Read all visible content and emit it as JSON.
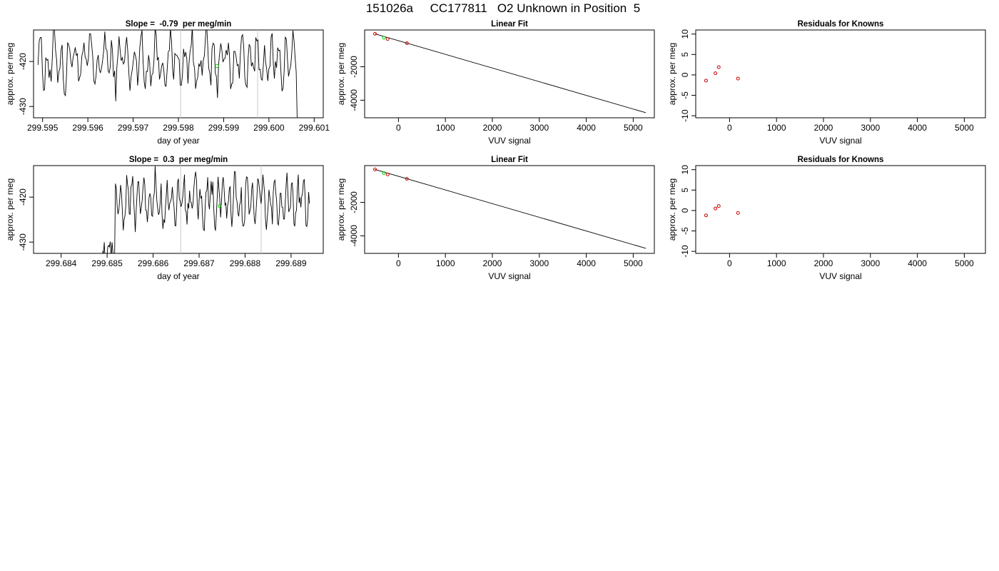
{
  "title": "151026a     CC177811   O2 Unknown in Position  5",
  "chart_data": [
    {
      "type": "line",
      "title": "Slope =  -0.79  per meg/min",
      "xlabel": "day of year",
      "ylabel": "approx. per meg",
      "xlim": [
        299.5948,
        299.6012
      ],
      "ylim": [
        -432.5,
        -413
      ],
      "xticks": [
        299.595,
        299.596,
        299.597,
        299.598,
        299.599,
        299.6,
        299.601
      ],
      "xtick_labels": [
        "299.595",
        "299.596",
        "299.597",
        "299.598",
        "299.599",
        "299.600",
        "299.601"
      ],
      "yticks": [
        -420,
        -430
      ],
      "ytick_labels": [
        "-420",
        "-430"
      ],
      "trace_x_range": [
        299.5949,
        299.6007
      ],
      "trace_center": -420,
      "trace_amplitude": 7.5,
      "trace_end_drop": -432.5,
      "vlines": [
        299.59805,
        299.59975
      ],
      "highlight_point": {
        "x": 299.59885,
        "y": -421
      },
      "line_color": "#000000",
      "vline_color": "#c8c8c8",
      "highlight_color": "#00cc00"
    },
    {
      "type": "scatter",
      "title": "Linear Fit",
      "xlabel": "VUV signal",
      "ylabel": "approx. per meg",
      "xlim": [
        -720,
        5450
      ],
      "ylim": [
        -5050,
        200
      ],
      "xticks": [
        0,
        1000,
        2000,
        3000,
        4000,
        5000
      ],
      "xtick_labels": [
        "0",
        "1000",
        "2000",
        "3000",
        "4000",
        "5000"
      ],
      "yticks": [
        -2000,
        -4000
      ],
      "ytick_labels": [
        "-2000",
        "-4000"
      ],
      "fit_line": {
        "x": [
          -500,
          5270
        ],
        "y": [
          -30,
          -4750
        ]
      },
      "points_known": [
        {
          "x": -500,
          "y": -30
        },
        {
          "x": -230,
          "y": -340
        },
        {
          "x": 180,
          "y": -590
        }
      ],
      "points_unknown": [
        {
          "x": -310,
          "y": -270
        }
      ],
      "known_color": "#cc0000",
      "unknown_color": "#00cc00"
    },
    {
      "type": "scatter",
      "title": "Residuals for Knowns",
      "xlabel": "VUV signal",
      "ylabel": "approx. per meg",
      "xlim": [
        -720,
        5450
      ],
      "ylim": [
        -10.5,
        11
      ],
      "xticks": [
        0,
        1000,
        2000,
        3000,
        4000,
        5000
      ],
      "xtick_labels": [
        "0",
        "1000",
        "2000",
        "3000",
        "4000",
        "5000"
      ],
      "yticks": [
        10,
        5,
        0,
        -5,
        -10
      ],
      "ytick_labels": [
        "10",
        "5",
        "0",
        "-5",
        "-10"
      ],
      "points": [
        {
          "x": -500,
          "y": -1.4
        },
        {
          "x": -300,
          "y": 0.4
        },
        {
          "x": -230,
          "y": 1.9
        },
        {
          "x": 180,
          "y": -0.9
        }
      ],
      "point_color": "#cc0000"
    },
    {
      "type": "line",
      "title": "Slope =  0.3  per meg/min",
      "xlabel": "day of year",
      "ylabel": "approx. per meg",
      "xlim": [
        299.6834,
        299.6897
      ],
      "ylim": [
        -432.5,
        -413
      ],
      "xticks": [
        299.684,
        299.685,
        299.686,
        299.687,
        299.688,
        299.689
      ],
      "xtick_labels": [
        "299.684",
        "299.685",
        "299.686",
        "299.687",
        "299.688",
        "299.689"
      ],
      "yticks": [
        -420,
        -430
      ],
      "ytick_labels": [
        "-420",
        "-430"
      ],
      "trace_x_range": [
        299.6849,
        299.6894
      ],
      "trace_center": -421,
      "trace_amplitude": 6.5,
      "trace_start_drop": -432.5,
      "vlines": [
        299.6866,
        299.68835
      ],
      "highlight_point": {
        "x": 299.68745,
        "y": -422
      },
      "line_color": "#000000",
      "vline_color": "#c8c8c8",
      "highlight_color": "#00cc00"
    },
    {
      "type": "scatter",
      "title": "Linear Fit",
      "xlabel": "VUV signal",
      "ylabel": "approx. per meg",
      "xlim": [
        -720,
        5450
      ],
      "ylim": [
        -5050,
        200
      ],
      "xticks": [
        0,
        1000,
        2000,
        3000,
        4000,
        5000
      ],
      "xtick_labels": [
        "0",
        "1000",
        "2000",
        "3000",
        "4000",
        "5000"
      ],
      "yticks": [
        -2000,
        -4000
      ],
      "ytick_labels": [
        "-2000",
        "-4000"
      ],
      "fit_line": {
        "x": [
          -500,
          5270
        ],
        "y": [
          -30,
          -4750
        ]
      },
      "points_known": [
        {
          "x": -500,
          "y": -30
        },
        {
          "x": -230,
          "y": -330
        },
        {
          "x": 180,
          "y": -590
        }
      ],
      "points_unknown": [
        {
          "x": -310,
          "y": -250
        }
      ],
      "known_color": "#cc0000",
      "unknown_color": "#00cc00"
    },
    {
      "type": "scatter",
      "title": "Residuals for Knowns",
      "xlabel": "VUV signal",
      "ylabel": "approx. per meg",
      "xlim": [
        -720,
        5450
      ],
      "ylim": [
        -10.5,
        11
      ],
      "xticks": [
        0,
        1000,
        2000,
        3000,
        4000,
        5000
      ],
      "xtick_labels": [
        "0",
        "1000",
        "2000",
        "3000",
        "4000",
        "5000"
      ],
      "yticks": [
        10,
        5,
        0,
        -5,
        -10
      ],
      "ytick_labels": [
        "10",
        "5",
        "0",
        "-5",
        "-10"
      ],
      "points": [
        {
          "x": -500,
          "y": -1.2
        },
        {
          "x": -300,
          "y": 0.5
        },
        {
          "x": -230,
          "y": 1.1
        },
        {
          "x": 180,
          "y": -0.6
        }
      ],
      "point_color": "#cc0000"
    }
  ]
}
